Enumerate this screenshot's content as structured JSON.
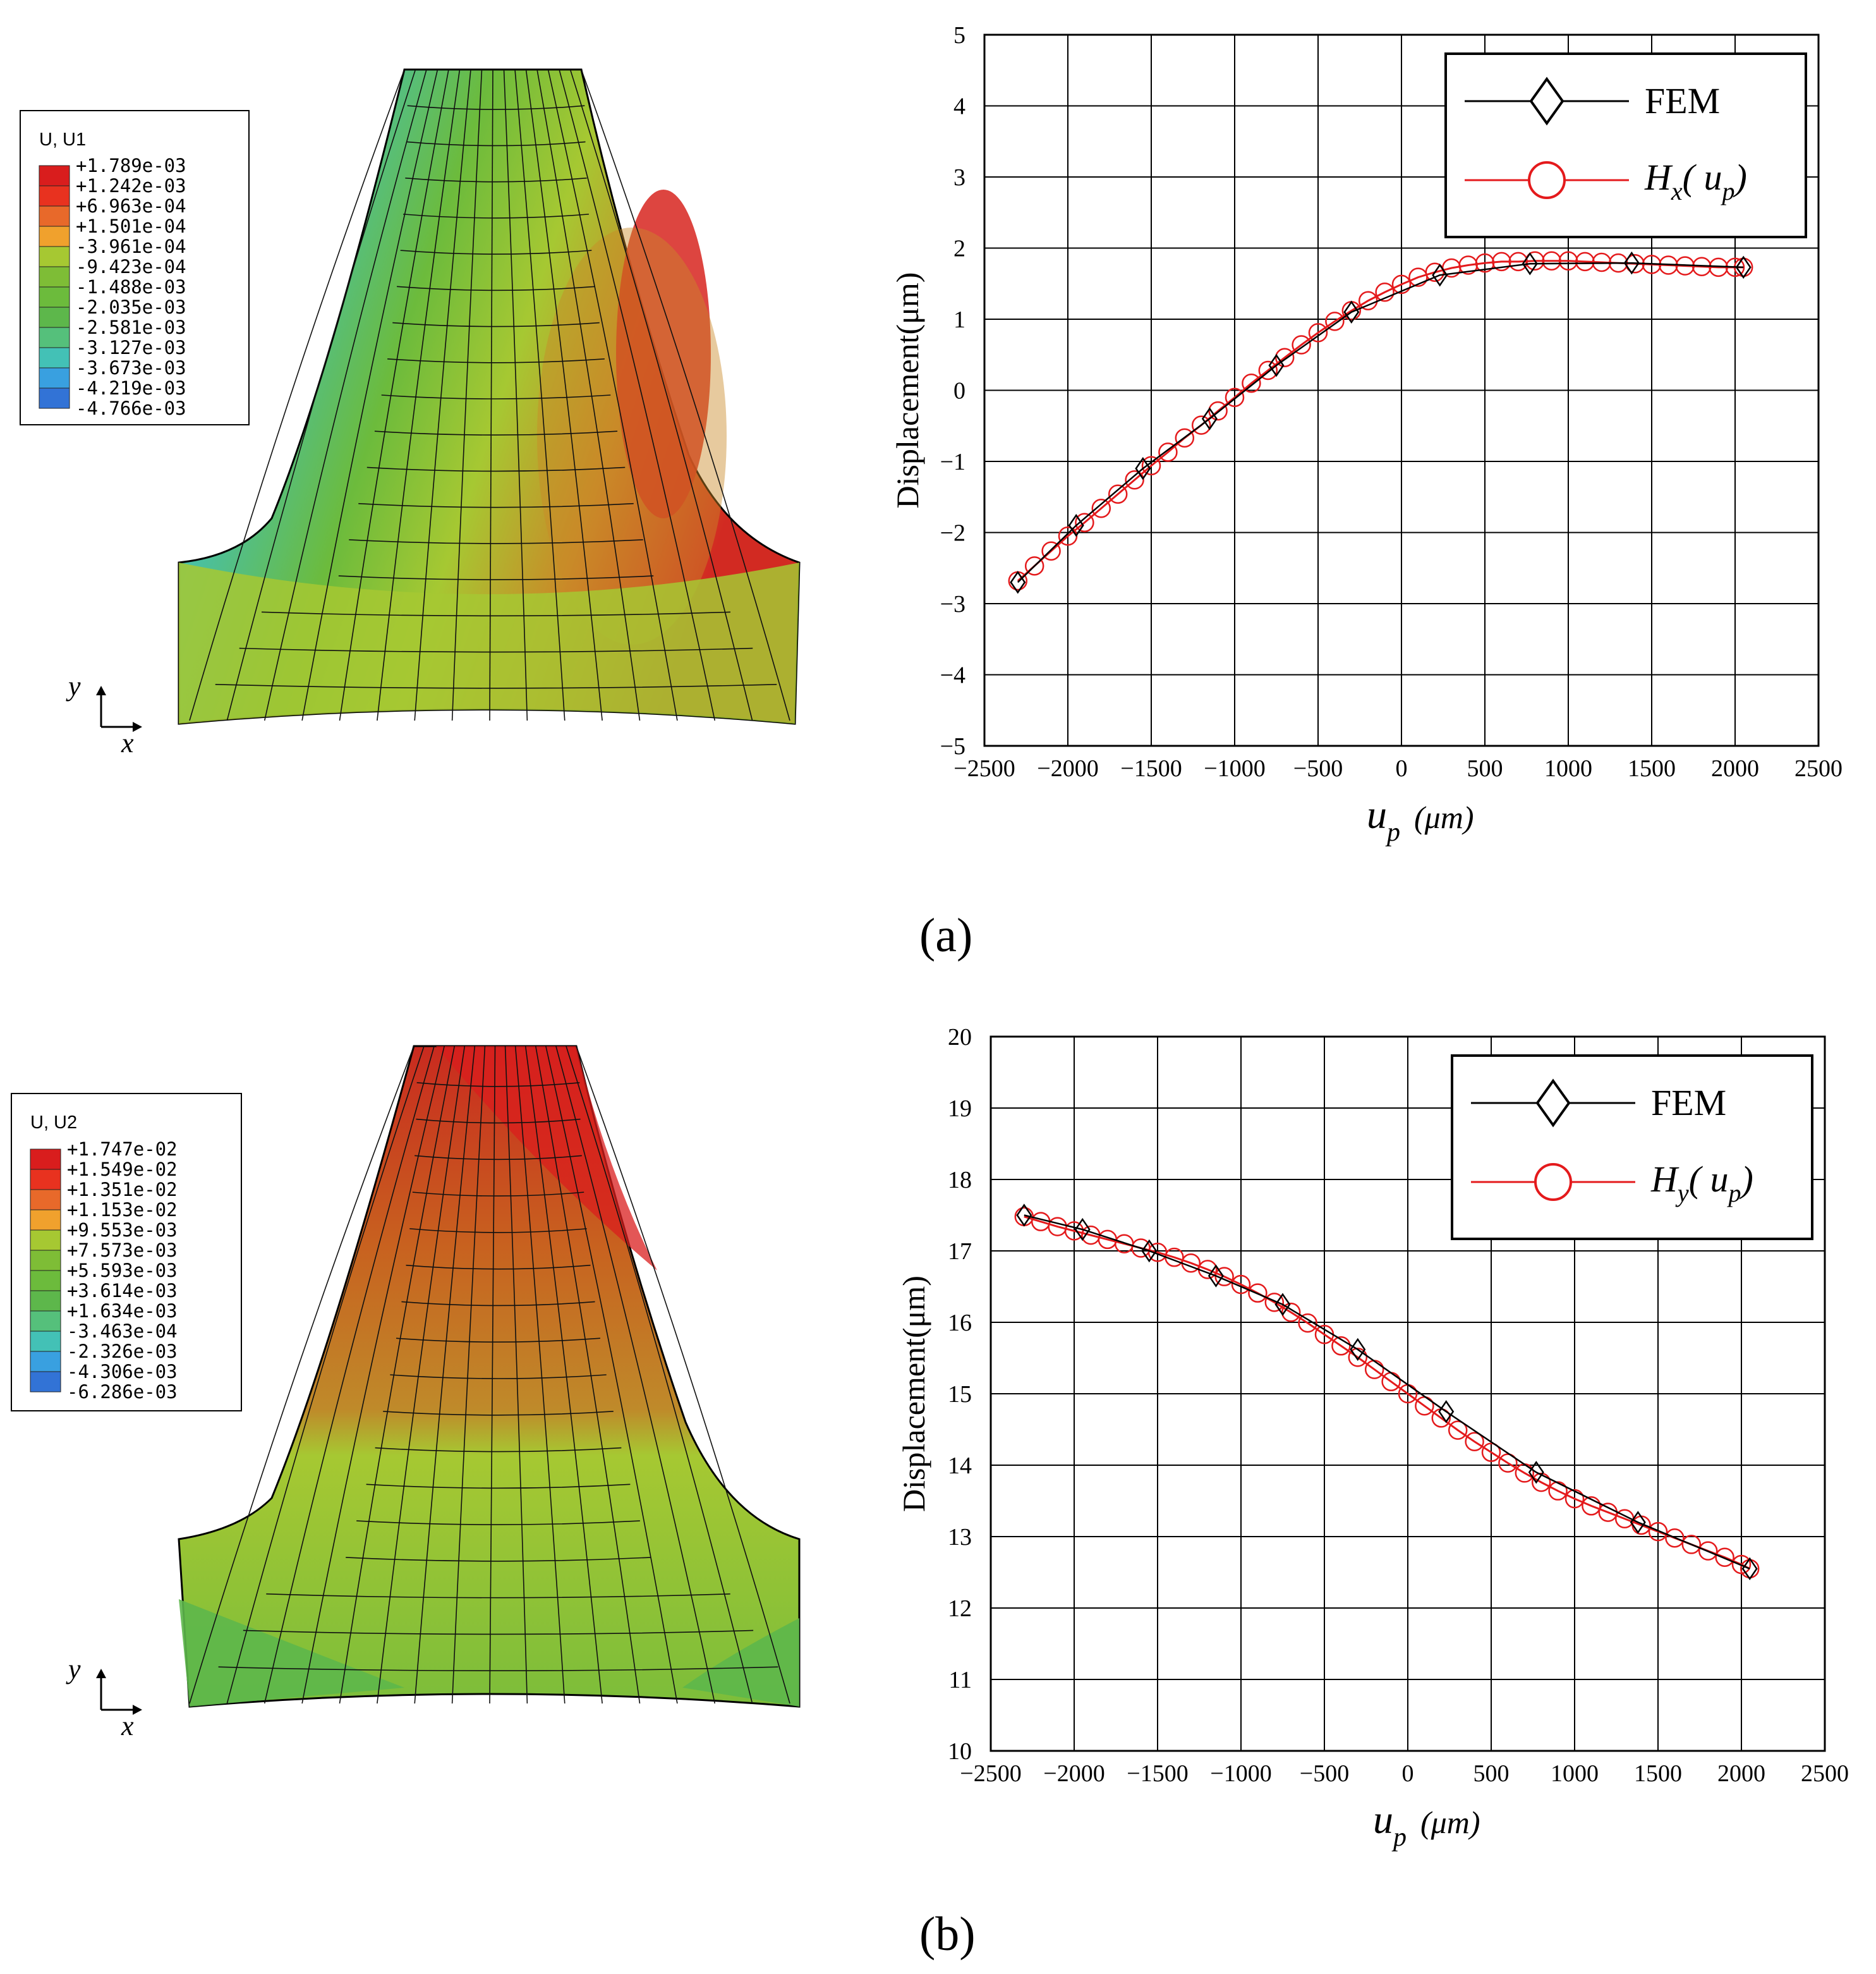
{
  "colors": {
    "scale": [
      "#2b3fa8",
      "#3273d6",
      "#39a0e0",
      "#43c1b6",
      "#55c07b",
      "#5db74b",
      "#6cbb3c",
      "#7ebd36",
      "#a6c832",
      "#f0a12d",
      "#e8692a",
      "#e8321f",
      "#d91d1d"
    ],
    "fem": "#000000",
    "model": "#e41a1c"
  },
  "panels": [
    {
      "caption": "(a)",
      "contour": {
        "legend_title": "U, U1",
        "legend_values": [
          "+1.789e-03",
          "+1.242e-03",
          "+6.963e-04",
          "+1.501e-04",
          "-3.961e-04",
          "-9.423e-04",
          "-1.488e-03",
          "-2.035e-03",
          "-2.581e-03",
          "-3.127e-03",
          "-3.673e-03",
          "-4.219e-03",
          "-4.766e-03"
        ],
        "axis_x": "x",
        "axis_y": "y"
      },
      "legend": {
        "fem": "FEM",
        "model_main": "H",
        "model_sub": "x",
        "model_arg": "u",
        "model_arg_sub": "p"
      },
      "chart_data": {
        "type": "line",
        "title": "",
        "xlabel": "u",
        "xlabel_sub": "p",
        "xlabel_unit": "(μm)",
        "ylabel": "Displacement(μm)",
        "xlim": [
          -2500,
          2500
        ],
        "ylim": [
          -5,
          5
        ],
        "xticks": [
          -2500,
          -2000,
          -1500,
          -1000,
          -500,
          0,
          500,
          1000,
          1500,
          2000,
          2500
        ],
        "yticks": [
          -5,
          -4,
          -3,
          -2,
          -1,
          0,
          1,
          2,
          3,
          4,
          5
        ],
        "xtick_labels": [
          "−2500",
          "−2000",
          "−1500",
          "−1000",
          "−500",
          "0",
          "500",
          "1000",
          "1500",
          "2000",
          "2500"
        ],
        "ytick_labels": [
          "−5",
          "−4",
          "−3",
          "−2",
          "−1",
          "0",
          "1",
          "2",
          "3",
          "4",
          "5"
        ],
        "grid": true,
        "legend_position": "top-right",
        "series": [
          {
            "name": "FEM",
            "marker": "diamond",
            "x": [
              -2300,
              -1950,
              -1550,
              -1150,
              -750,
              -300,
              230,
              770,
              1380,
              2050
            ],
            "y": [
              -2.7,
              -1.9,
              -1.1,
              -0.4,
              0.35,
              1.1,
              1.62,
              1.78,
              1.79,
              1.73
            ]
          },
          {
            "name": "Hx(up)",
            "marker": "circle",
            "x": [
              -2300,
              -2200,
              -2100,
              -2000,
              -1900,
              -1800,
              -1700,
              -1600,
              -1500,
              -1400,
              -1300,
              -1200,
              -1100,
              -1000,
              -900,
              -800,
              -700,
              -600,
              -500,
              -400,
              -300,
              -200,
              -100,
              0,
              100,
              200,
              300,
              400,
              500,
              600,
              700,
              800,
              900,
              1000,
              1100,
              1200,
              1300,
              1400,
              1500,
              1600,
              1700,
              1800,
              1900,
              2000,
              2050
            ],
            "y": [
              -2.68,
              -2.47,
              -2.26,
              -2.05,
              -1.86,
              -1.66,
              -1.46,
              -1.26,
              -1.06,
              -0.87,
              -0.67,
              -0.49,
              -0.29,
              -0.1,
              0.1,
              0.28,
              0.46,
              0.64,
              0.81,
              0.97,
              1.12,
              1.26,
              1.38,
              1.49,
              1.59,
              1.66,
              1.72,
              1.76,
              1.79,
              1.81,
              1.81,
              1.82,
              1.82,
              1.82,
              1.81,
              1.8,
              1.79,
              1.78,
              1.77,
              1.76,
              1.75,
              1.74,
              1.73,
              1.73,
              1.73
            ]
          }
        ]
      }
    },
    {
      "caption": "(b)",
      "contour": {
        "legend_title": "U, U2",
        "legend_values": [
          "+1.747e-02",
          "+1.549e-02",
          "+1.351e-02",
          "+1.153e-02",
          "+9.553e-03",
          "+7.573e-03",
          "+5.593e-03",
          "+3.614e-03",
          "+1.634e-03",
          "-3.463e-04",
          "-2.326e-03",
          "-4.306e-03",
          "-6.286e-03"
        ],
        "axis_x": "x",
        "axis_y": "y"
      },
      "legend": {
        "fem": "FEM",
        "model_main": "H",
        "model_sub": "y",
        "model_arg": "u",
        "model_arg_sub": "p"
      },
      "chart_data": {
        "type": "line",
        "title": "",
        "xlabel": "u",
        "xlabel_sub": "p",
        "xlabel_unit": "(μm)",
        "ylabel": "Displacement(μm)",
        "xlim": [
          -2500,
          2500
        ],
        "ylim": [
          10,
          20
        ],
        "xticks": [
          -2500,
          -2000,
          -1500,
          -1000,
          -500,
          0,
          500,
          1000,
          1500,
          2000,
          2500
        ],
        "yticks": [
          10,
          11,
          12,
          13,
          14,
          15,
          16,
          17,
          18,
          19,
          20
        ],
        "xtick_labels": [
          "−2500",
          "−2000",
          "−1500",
          "−1000",
          "−500",
          "0",
          "500",
          "1000",
          "1500",
          "2000",
          "2500"
        ],
        "ytick_labels": [
          "10",
          "11",
          "12",
          "13",
          "14",
          "15",
          "16",
          "17",
          "18",
          "19",
          "20"
        ],
        "grid": true,
        "legend_position": "top-right",
        "series": [
          {
            "name": "FEM",
            "marker": "diamond",
            "x": [
              -2300,
              -1950,
              -1550,
              -1150,
              -750,
              -300,
              230,
              770,
              1380,
              2050
            ],
            "y": [
              17.5,
              17.3,
              17.0,
              16.65,
              16.25,
              15.62,
              14.75,
              13.9,
              13.2,
              12.55
            ]
          },
          {
            "name": "Hy(up)",
            "marker": "circle",
            "x": [
              -2300,
              -2200,
              -2100,
              -2000,
              -1900,
              -1800,
              -1700,
              -1600,
              -1500,
              -1400,
              -1300,
              -1200,
              -1100,
              -1000,
              -900,
              -800,
              -700,
              -600,
              -500,
              -400,
              -300,
              -200,
              -100,
              0,
              100,
              200,
              300,
              400,
              500,
              600,
              700,
              800,
              900,
              1000,
              1100,
              1200,
              1300,
              1400,
              1500,
              1600,
              1700,
              1800,
              1900,
              2000,
              2050
            ],
            "y": [
              17.48,
              17.41,
              17.34,
              17.28,
              17.22,
              17.16,
              17.1,
              17.04,
              16.98,
              16.91,
              16.83,
              16.74,
              16.64,
              16.53,
              16.41,
              16.28,
              16.14,
              15.99,
              15.83,
              15.67,
              15.51,
              15.34,
              15.17,
              15.0,
              14.83,
              14.66,
              14.49,
              14.33,
              14.18,
              14.03,
              13.89,
              13.76,
              13.64,
              13.53,
              13.43,
              13.34,
              13.25,
              13.16,
              13.07,
              12.98,
              12.89,
              12.8,
              12.71,
              12.61,
              12.55
            ]
          }
        ]
      }
    }
  ]
}
